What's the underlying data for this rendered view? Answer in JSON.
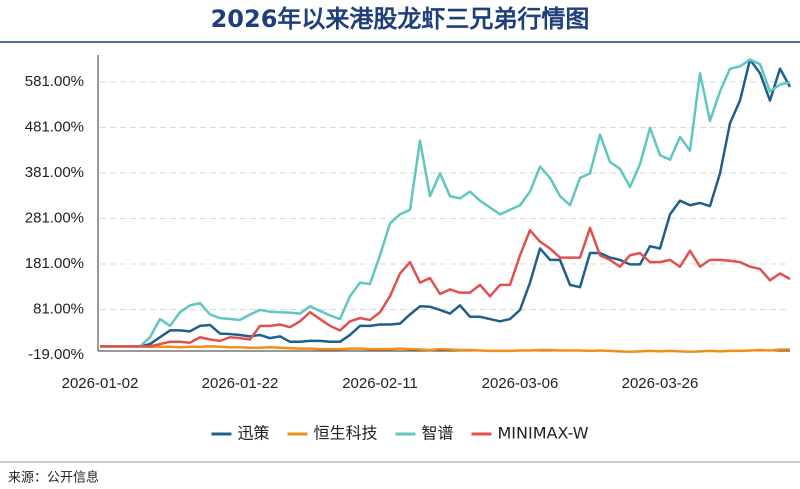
{
  "chart_data": {
    "type": "line",
    "title": "2026年以来港股龙虾三兄弟行情图",
    "source": "来源：公开信息",
    "categories": [
      "2026-01-02",
      null,
      null,
      null,
      null,
      null,
      null,
      null,
      null,
      null,
      null,
      null,
      null,
      null,
      "2026-01-22",
      null,
      null,
      null,
      null,
      null,
      null,
      null,
      null,
      null,
      null,
      null,
      null,
      null,
      "2026-02-11",
      null,
      null,
      null,
      null,
      null,
      null,
      null,
      null,
      null,
      null,
      null,
      null,
      null,
      "2026-03-06",
      null,
      null,
      null,
      null,
      null,
      null,
      null,
      null,
      null,
      null,
      null,
      null,
      null,
      "2026-03-26",
      null,
      null,
      null,
      null,
      null,
      null,
      null,
      null,
      null,
      null,
      null,
      null,
      null
    ],
    "ylim": [
      -19,
      640
    ],
    "yticks": [
      {
        "value": -19,
        "label": "-19.00%"
      },
      {
        "value": 81,
        "label": "81.00%"
      },
      {
        "value": 181,
        "label": "181.00%"
      },
      {
        "value": 281,
        "label": "281.00%"
      },
      {
        "value": 381,
        "label": "381.00%"
      },
      {
        "value": 481,
        "label": "481.00%"
      },
      {
        "value": 581,
        "label": "581.00%"
      }
    ],
    "grid": true,
    "series": [
      {
        "name": "迅策",
        "color": "#1f5f8b",
        "values": [
          0,
          0,
          0,
          0,
          0,
          5,
          20,
          35,
          35,
          33,
          45,
          47,
          28,
          27,
          25,
          22,
          25,
          18,
          22,
          10,
          10,
          12,
          12,
          10,
          10,
          25,
          45,
          45,
          48,
          48,
          50,
          70,
          88,
          87,
          80,
          72,
          90,
          65,
          65,
          60,
          55,
          60,
          80,
          140,
          215,
          190,
          190,
          135,
          130,
          205,
          205,
          195,
          190,
          180,
          180,
          220,
          215,
          290,
          320,
          310,
          315,
          308,
          380,
          490,
          540,
          630,
          600,
          540,
          610,
          570
        ]
      },
      {
        "name": "恒生科技",
        "color": "#f28e1c",
        "values": [
          0,
          0,
          0,
          0,
          0,
          -1,
          -1,
          -1,
          -2,
          -1,
          -1,
          0,
          -1,
          -2,
          -2,
          -3,
          -3,
          -2,
          -3,
          -4,
          -5,
          -5,
          -6,
          -6,
          -6,
          -5,
          -5,
          -6,
          -6,
          -6,
          -5,
          -6,
          -7,
          -8,
          -6,
          -7,
          -8,
          -8,
          -9,
          -10,
          -10,
          -10,
          -9,
          -9,
          -8,
          -8,
          -9,
          -9,
          -9,
          -10,
          -9,
          -10,
          -11,
          -12,
          -11,
          -10,
          -11,
          -10,
          -11,
          -12,
          -11,
          -10,
          -11,
          -10,
          -10,
          -9,
          -8,
          -9,
          -7,
          -7
        ]
      },
      {
        "name": "智谱",
        "color": "#5fc6c0",
        "values": [
          0,
          0,
          0,
          0,
          0,
          20,
          60,
          45,
          75,
          90,
          95,
          70,
          62,
          60,
          58,
          70,
          80,
          76,
          75,
          74,
          72,
          88,
          78,
          68,
          60,
          110,
          140,
          137,
          200,
          270,
          290,
          300,
          452,
          330,
          380,
          330,
          325,
          340,
          320,
          305,
          290,
          300,
          310,
          340,
          395,
          370,
          330,
          310,
          370,
          380,
          465,
          405,
          390,
          350,
          400,
          480,
          420,
          410,
          460,
          430,
          600,
          495,
          560,
          610,
          615,
          630,
          620,
          560,
          575,
          580
        ]
      },
      {
        "name": "MINIMAX-W",
        "color": "#e0504f",
        "values": [
          0,
          0,
          0,
          0,
          0,
          0,
          5,
          10,
          10,
          8,
          20,
          15,
          12,
          20,
          18,
          15,
          45,
          45,
          48,
          42,
          55,
          75,
          60,
          45,
          35,
          55,
          62,
          58,
          75,
          110,
          160,
          185,
          140,
          150,
          115,
          125,
          118,
          118,
          135,
          110,
          135,
          135,
          200,
          255,
          230,
          215,
          195,
          195,
          195,
          260,
          200,
          190,
          175,
          200,
          205,
          185,
          185,
          190,
          175,
          210,
          175,
          190,
          190,
          188,
          185,
          175,
          170,
          145,
          160,
          148
        ]
      }
    ]
  }
}
